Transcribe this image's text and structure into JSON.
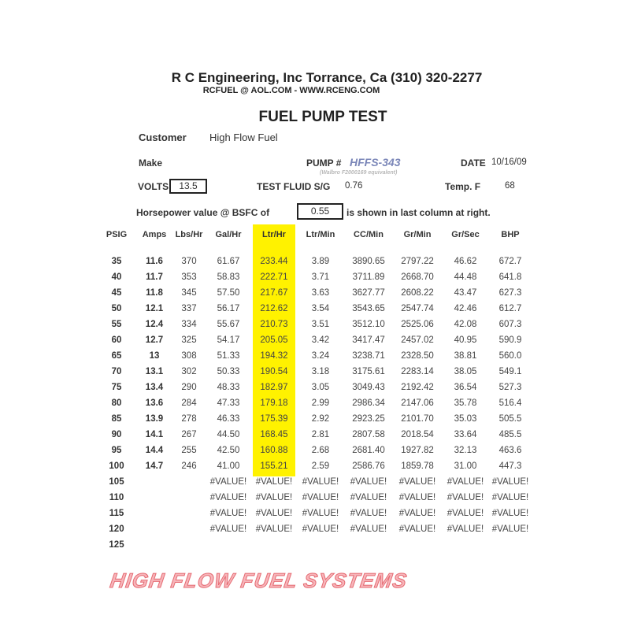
{
  "header": {
    "company": "R C Engineering, Inc  Torrance,  Ca  (310) 320-2277",
    "contact": "RCFUEL @ AOL.COM -  WWW.RCENG.COM",
    "title": "FUEL PUMP TEST"
  },
  "info": {
    "customer_label": "Customer",
    "customer": "High Flow Fuel",
    "make_label": "Make",
    "pump_label": "PUMP #",
    "pump": "HFFS-343",
    "pump_note": "(Walbro F2000169 equivalent)",
    "date_label": "DATE",
    "date": "10/16/09",
    "volts_label": "VOLTS",
    "volts": "13.5",
    "fluid_label": "TEST FLUID  S/G",
    "fluid_sg": "0.76",
    "temp_label": "Temp.  F",
    "temp": "68",
    "bsfc_label": "Horsepower value @  BSFC of",
    "bsfc": "0.55",
    "bsfc_note": "is shown in last column at right."
  },
  "watermark": "HIGH FLOW FUEL SYSTEMS",
  "colors": {
    "highlight": "#fff200",
    "pump": "#7a86b8",
    "watermark": "#e05060"
  },
  "table": {
    "columns": [
      "PSIG",
      "Amps",
      "Lbs/Hr",
      "Gal/Hr",
      "Ltr/Hr",
      "Ltr/Min",
      "CC/Min",
      "Gr/Min",
      "Gr/Sec",
      "BHP"
    ],
    "rows": [
      [
        "35",
        "11.6",
        "370",
        "61.67",
        "233.44",
        "3.89",
        "3890.65",
        "2797.22",
        "46.62",
        "672.7"
      ],
      [
        "40",
        "11.7",
        "353",
        "58.83",
        "222.71",
        "3.71",
        "3711.89",
        "2668.70",
        "44.48",
        "641.8"
      ],
      [
        "45",
        "11.8",
        "345",
        "57.50",
        "217.67",
        "3.63",
        "3627.77",
        "2608.22",
        "43.47",
        "627.3"
      ],
      [
        "50",
        "12.1",
        "337",
        "56.17",
        "212.62",
        "3.54",
        "3543.65",
        "2547.74",
        "42.46",
        "612.7"
      ],
      [
        "55",
        "12.4",
        "334",
        "55.67",
        "210.73",
        "3.51",
        "3512.10",
        "2525.06",
        "42.08",
        "607.3"
      ],
      [
        "60",
        "12.7",
        "325",
        "54.17",
        "205.05",
        "3.42",
        "3417.47",
        "2457.02",
        "40.95",
        "590.9"
      ],
      [
        "65",
        "13",
        "308",
        "51.33",
        "194.32",
        "3.24",
        "3238.71",
        "2328.50",
        "38.81",
        "560.0"
      ],
      [
        "70",
        "13.1",
        "302",
        "50.33",
        "190.54",
        "3.18",
        "3175.61",
        "2283.14",
        "38.05",
        "549.1"
      ],
      [
        "75",
        "13.4",
        "290",
        "48.33",
        "182.97",
        "3.05",
        "3049.43",
        "2192.42",
        "36.54",
        "527.3"
      ],
      [
        "80",
        "13.6",
        "284",
        "47.33",
        "179.18",
        "2.99",
        "2986.34",
        "2147.06",
        "35.78",
        "516.4"
      ],
      [
        "85",
        "13.9",
        "278",
        "46.33",
        "175.39",
        "2.92",
        "2923.25",
        "2101.70",
        "35.03",
        "505.5"
      ],
      [
        "90",
        "14.1",
        "267",
        "44.50",
        "168.45",
        "2.81",
        "2807.58",
        "2018.54",
        "33.64",
        "485.5"
      ],
      [
        "95",
        "14.4",
        "255",
        "42.50",
        "160.88",
        "2.68",
        "2681.40",
        "1927.82",
        "32.13",
        "463.6"
      ],
      [
        "100",
        "14.7",
        "246",
        "41.00",
        "155.21",
        "2.59",
        "2586.76",
        "1859.78",
        "31.00",
        "447.3"
      ],
      [
        "105",
        "",
        "",
        "#VALUE!",
        "#VALUE!",
        "#VALUE!",
        "#VALUE!",
        "#VALUE!",
        "#VALUE!",
        "#VALUE!"
      ],
      [
        "110",
        "",
        "",
        "#VALUE!",
        "#VALUE!",
        "#VALUE!",
        "#VALUE!",
        "#VALUE!",
        "#VALUE!",
        "#VALUE!"
      ],
      [
        "115",
        "",
        "",
        "#VALUE!",
        "#VALUE!",
        "#VALUE!",
        "#VALUE!",
        "#VALUE!",
        "#VALUE!",
        "#VALUE!"
      ],
      [
        "120",
        "",
        "",
        "#VALUE!",
        "#VALUE!",
        "#VALUE!",
        "#VALUE!",
        "#VALUE!",
        "#VALUE!",
        "#VALUE!"
      ],
      [
        "125",
        "",
        "",
        "",
        "",
        "",
        "",
        "",
        "",
        ""
      ]
    ]
  }
}
